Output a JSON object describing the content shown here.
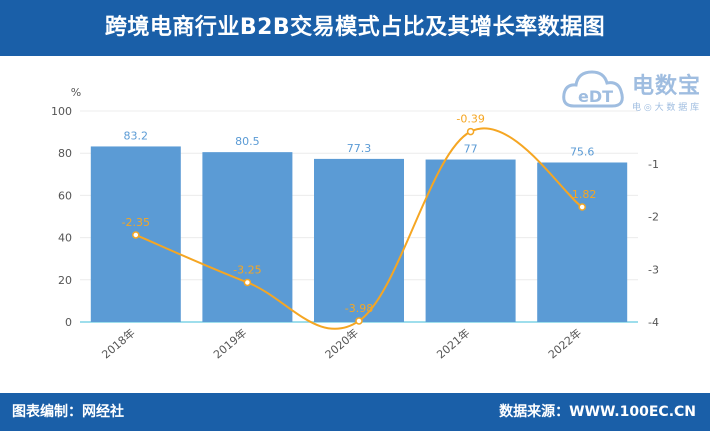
{
  "header": {
    "title": "跨境电商行业B2B交易模式占比及其增长率数据图"
  },
  "footer": {
    "left": "图表编制：网经社",
    "right": "数据来源：WWW.100EC.CN"
  },
  "logo": {
    "mark": "eDT",
    "brand": "电数宝",
    "sub": "电 ◎ 大 数 据 库"
  },
  "chart_data": {
    "type": "bar",
    "categories": [
      "2018年",
      "2019年",
      "2020年",
      "2021年",
      "2022年"
    ],
    "series": [
      {
        "type": "bar",
        "axis": "left",
        "values": [
          83.2,
          80.5,
          77.3,
          77,
          75.6
        ],
        "color": "#5b9bd5"
      },
      {
        "type": "line",
        "axis": "right",
        "values": [
          -2.35,
          -3.25,
          -3.98,
          -0.39,
          -1.82
        ],
        "color": "#f5a623"
      }
    ],
    "ylabel": "%",
    "ylim": [
      0,
      100
    ],
    "yticks": [
      0,
      20,
      40,
      60,
      80,
      100
    ],
    "y2lim": [
      -4,
      0
    ],
    "y2ticks": [
      -1,
      -2,
      -3,
      -4
    ],
    "grid": true,
    "legend": "none"
  }
}
